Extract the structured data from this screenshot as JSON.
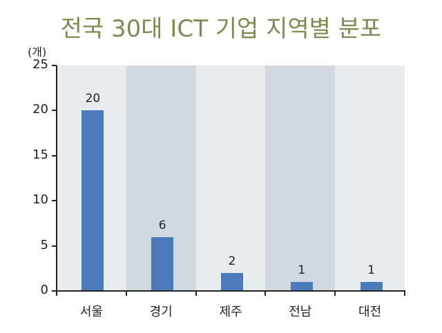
{
  "title": "전국 30대 ICT 기업 지역별 분포",
  "unit_label": "(개)",
  "colors": {
    "title": "#7f8a52",
    "bar": "#4a7aba",
    "band_light": "#e7ecef",
    "band_dark": "#d1d9e0"
  },
  "y_ticks": [
    "0",
    "5",
    "10",
    "15",
    "20",
    "25"
  ],
  "categories": [
    "서울",
    "경기",
    "제주",
    "전남",
    "대전"
  ],
  "value_labels": [
    "20",
    "6",
    "2",
    "1",
    "1"
  ],
  "chart_data": {
    "type": "bar",
    "title": "전국 30대 ICT 기업 지역별 분포",
    "xlabel": "",
    "ylabel": "(개)",
    "categories": [
      "서울",
      "경기",
      "제주",
      "전남",
      "대전"
    ],
    "values": [
      20,
      6,
      2,
      1,
      1
    ],
    "ylim": [
      0,
      25
    ],
    "yticks": [
      0,
      5,
      10,
      15,
      20,
      25
    ],
    "grid": false,
    "legend": null,
    "data_labels": true,
    "background_bands": "alternating light/dark per category"
  }
}
